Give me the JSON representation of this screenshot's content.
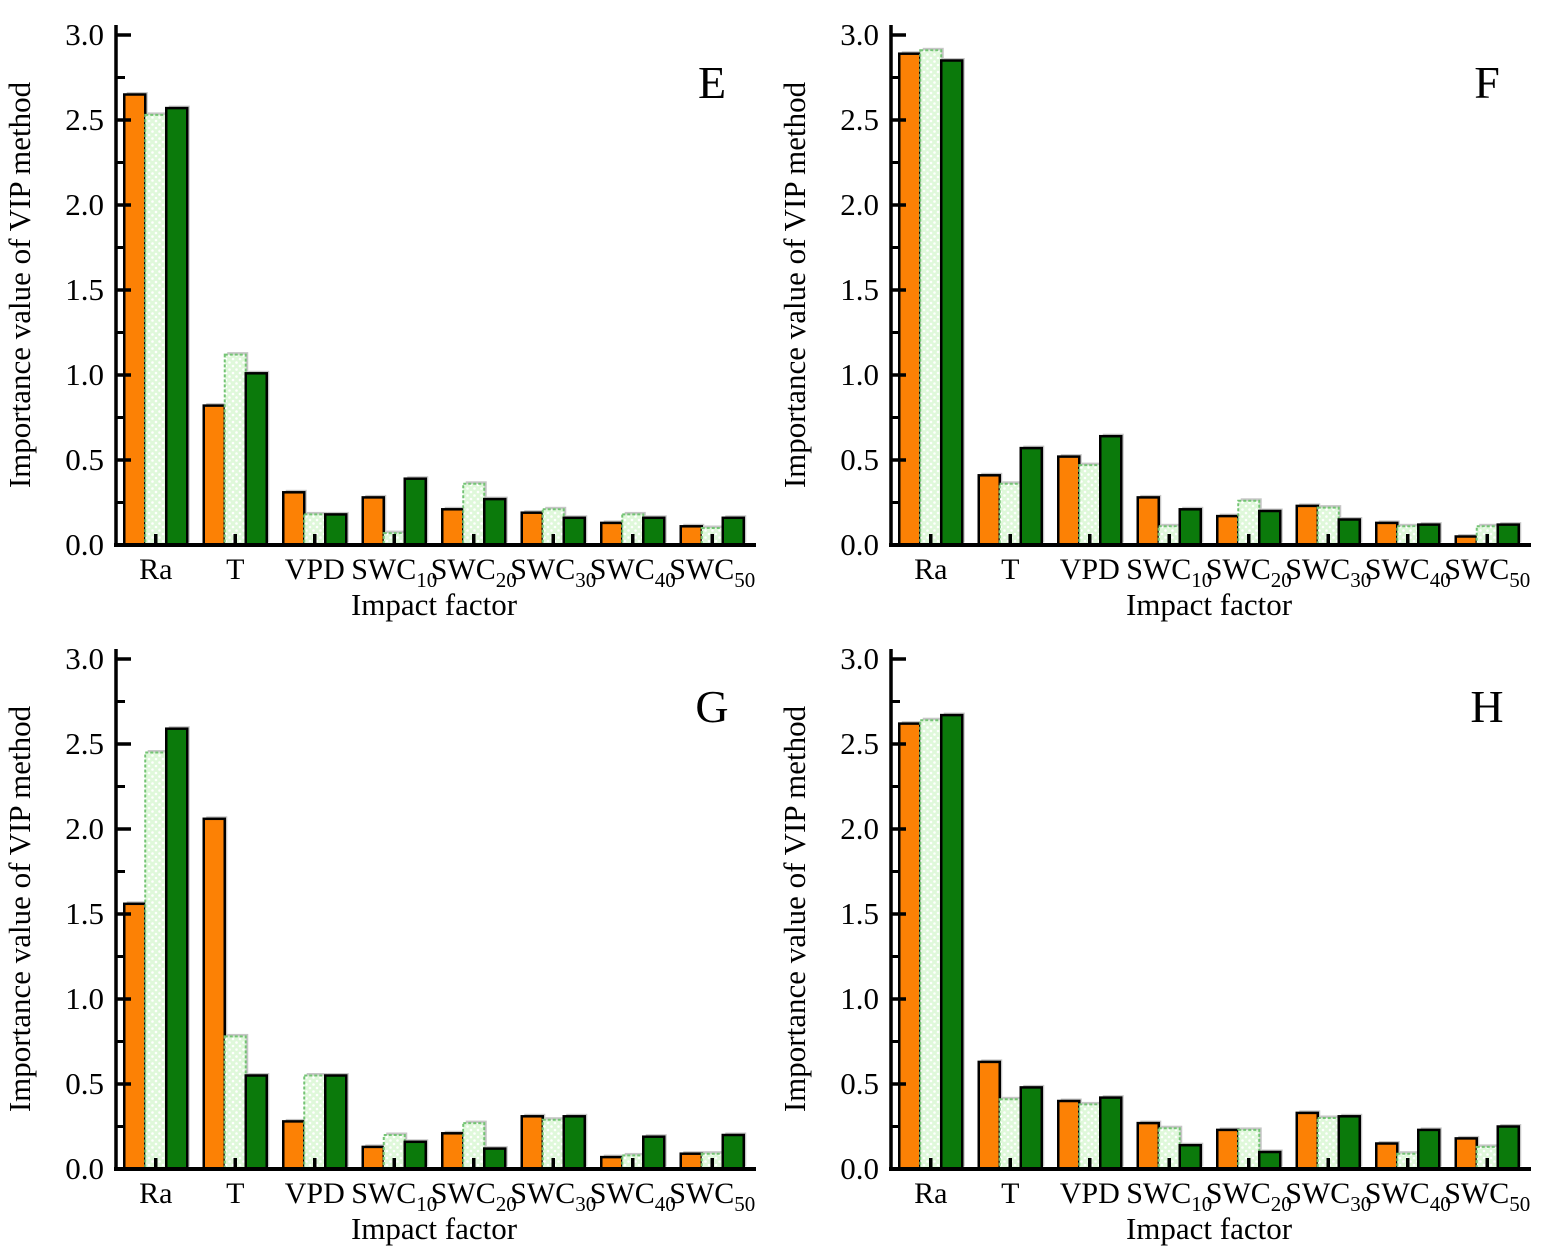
{
  "figure": {
    "background": "#FFFFFF",
    "xlabel": "Impact factor",
    "ylabel": "Importance value of VIP method",
    "ylim": [
      0.0,
      3.0
    ],
    "ytick_major_step": 0.5,
    "ytick_minor_step": 0.25,
    "ytick_labels": [
      "0.0",
      "0.5",
      "1.0",
      "1.5",
      "2.0",
      "2.5",
      "3.0"
    ],
    "grid": "off",
    "legend": "none",
    "colors": {
      "orange_fill": "#FC8105",
      "dark_green_fill": "#0B7A0B",
      "light_green_fill": "#DFF8DA",
      "light_green_dot": "#FFFFFF",
      "light_green_border": "#74C474",
      "bar_border": "#000000",
      "axis": "#000000",
      "shadow": "#C6C6C6"
    },
    "categories_display": [
      {
        "base": "Ra",
        "sub": ""
      },
      {
        "base": "T",
        "sub": ""
      },
      {
        "base": "VPD",
        "sub": ""
      },
      {
        "base": "SWC",
        "sub": "10"
      },
      {
        "base": "SWC",
        "sub": "20"
      },
      {
        "base": "SWC",
        "sub": "30"
      },
      {
        "base": "SWC",
        "sub": "40"
      },
      {
        "base": "SWC",
        "sub": "50"
      }
    ]
  },
  "chart_data": [
    {
      "type": "bar",
      "panel_label": "E",
      "categories": [
        "Ra",
        "T",
        "VPD",
        "SWC10",
        "SWC20",
        "SWC30",
        "SWC40",
        "SWC50"
      ],
      "series": [
        {
          "name": "orange",
          "values": [
            2.65,
            0.82,
            0.31,
            0.28,
            0.21,
            0.19,
            0.13,
            0.11
          ]
        },
        {
          "name": "light green",
          "values": [
            2.53,
            1.12,
            0.18,
            0.07,
            0.36,
            0.21,
            0.18,
            0.1
          ]
        },
        {
          "name": "dark green",
          "values": [
            2.57,
            1.01,
            0.18,
            0.39,
            0.27,
            0.16,
            0.16,
            0.16
          ]
        }
      ],
      "xlabel": "Impact factor",
      "ylabel": "Importance value of VIP method",
      "ylim": [
        0,
        3
      ]
    },
    {
      "type": "bar",
      "panel_label": "F",
      "categories": [
        "Ra",
        "T",
        "VPD",
        "SWC10",
        "SWC20",
        "SWC30",
        "SWC40",
        "SWC50"
      ],
      "series": [
        {
          "name": "orange",
          "values": [
            2.89,
            0.41,
            0.52,
            0.28,
            0.17,
            0.23,
            0.13,
            0.05
          ]
        },
        {
          "name": "light green",
          "values": [
            2.91,
            0.36,
            0.47,
            0.11,
            0.26,
            0.22,
            0.11,
            0.11
          ]
        },
        {
          "name": "dark green",
          "values": [
            2.85,
            0.57,
            0.64,
            0.21,
            0.2,
            0.15,
            0.12,
            0.12
          ]
        }
      ],
      "xlabel": "Impact factor",
      "ylabel": "Importance value of VIP method",
      "ylim": [
        0,
        3
      ]
    },
    {
      "type": "bar",
      "panel_label": "G",
      "categories": [
        "Ra",
        "T",
        "VPD",
        "SWC10",
        "SWC20",
        "SWC30",
        "SWC40",
        "SWC50"
      ],
      "series": [
        {
          "name": "orange",
          "values": [
            1.56,
            2.06,
            0.28,
            0.13,
            0.21,
            0.31,
            0.07,
            0.09
          ]
        },
        {
          "name": "light green",
          "values": [
            2.45,
            0.78,
            0.55,
            0.2,
            0.27,
            0.29,
            0.08,
            0.09
          ]
        },
        {
          "name": "dark green",
          "values": [
            2.59,
            0.55,
            0.55,
            0.16,
            0.12,
            0.31,
            0.19,
            0.2
          ]
        }
      ],
      "xlabel": "Impact factor",
      "ylabel": "Importance value of VIP method",
      "ylim": [
        0,
        3
      ]
    },
    {
      "type": "bar",
      "panel_label": "H",
      "categories": [
        "Ra",
        "T",
        "VPD",
        "SWC10",
        "SWC20",
        "SWC30",
        "SWC40",
        "SWC50"
      ],
      "series": [
        {
          "name": "orange",
          "values": [
            2.62,
            0.63,
            0.4,
            0.27,
            0.23,
            0.33,
            0.15,
            0.18
          ]
        },
        {
          "name": "light green",
          "values": [
            2.64,
            0.41,
            0.38,
            0.24,
            0.23,
            0.3,
            0.09,
            0.13
          ]
        },
        {
          "name": "dark green",
          "values": [
            2.67,
            0.48,
            0.42,
            0.14,
            0.1,
            0.31,
            0.23,
            0.25
          ]
        }
      ],
      "xlabel": "Impact factor",
      "ylabel": "Importance value of VIP method",
      "ylim": [
        0,
        3
      ]
    }
  ]
}
